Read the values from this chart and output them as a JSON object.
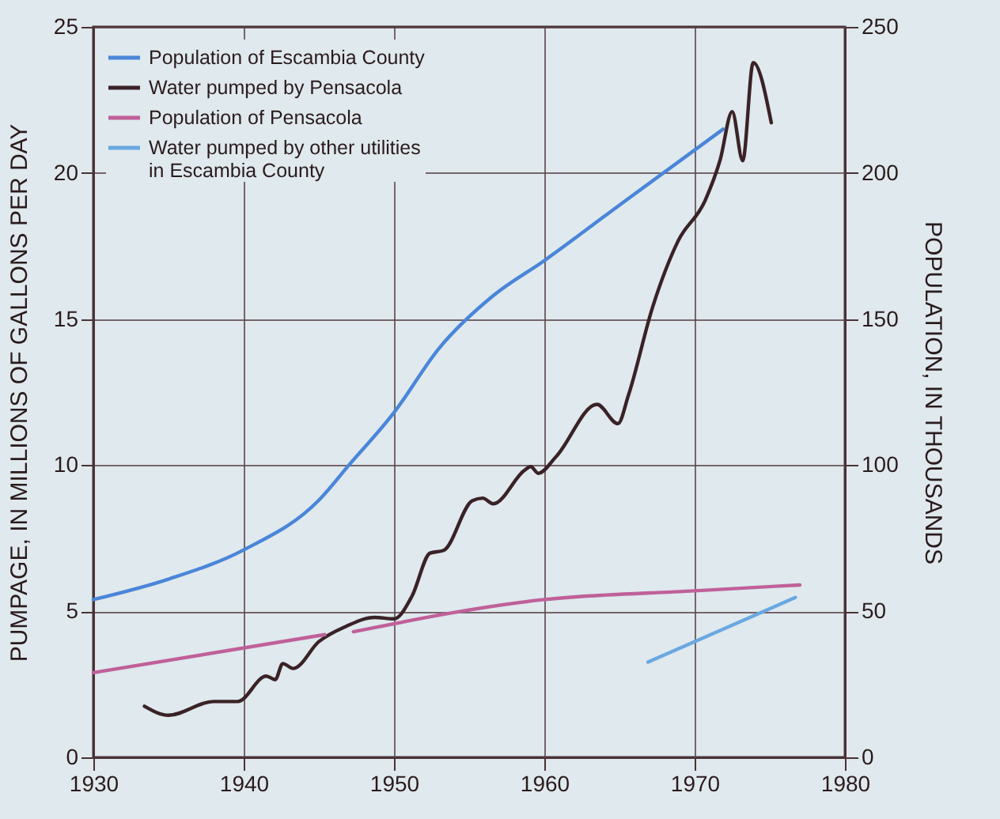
{
  "chart_data": {
    "type": "line",
    "xlabel": null,
    "ylabel": "PUMPAGE, IN MILLIONS OF GALLONS PER DAY",
    "y2label": "POPULATION, IN THOUSANDS",
    "series": [
      {
        "name": "Population of Escambia County",
        "color": "#4a86d8",
        "axis": "y2",
        "x": [
          1930,
          1935,
          1940,
          1945,
          1947,
          1950,
          1953,
          1956.6,
          1960,
          1965,
          1971.9
        ],
        "values": [
          54,
          61,
          71,
          88,
          100,
          118,
          140,
          158,
          170,
          189,
          215
        ]
      },
      {
        "name": "Water pumped by Pensacola",
        "color": "#3a2226",
        "x": [
          1933.4,
          1935,
          1938,
          1939.6,
          1941.5,
          1942.1,
          1942.6,
          1943.3,
          1945,
          1946.8,
          1948.7,
          1950,
          1951.2,
          1952.4,
          1953.3,
          1955.2,
          1955.9,
          1956.6,
          1958.7,
          1959.1,
          1959.6,
          1960.8,
          1963.5,
          1964.9,
          1965.6,
          1967.2,
          1968.9,
          1970.7,
          1971.7,
          1972.5,
          1973.2,
          1973.9,
          1975.1
        ],
        "values": [
          1.75,
          1.44,
          1.91,
          1.91,
          2.78,
          2.66,
          3.21,
          3.04,
          3.96,
          4.48,
          4.79,
          4.74,
          5.52,
          6.99,
          7.08,
          8.78,
          8.87,
          8.68,
          9.83,
          9.95,
          9.72,
          10.3,
          12.08,
          11.42,
          12.4,
          15.4,
          17.67,
          19.06,
          20.45,
          22.1,
          20.42,
          23.78,
          21.72
        ]
      },
      {
        "name": "Population of Pensacola",
        "color": "#c0609a",
        "axis": "y2",
        "x": [
          1930,
          1945.4,
          1946.4,
          1947.3,
          1960,
          1970,
          1977
        ],
        "values": [
          29,
          42,
          null,
          43,
          54,
          57,
          59
        ]
      },
      {
        "name": "Water pumped by other utilities in Escambia County",
        "color": "#6aa8e0",
        "x": [
          1966.9,
          1976.7
        ],
        "values": [
          3.26,
          5.47
        ]
      }
    ],
    "xlim": [
      1930,
      1980
    ],
    "xticks": [
      1930,
      1940,
      1950,
      1960,
      1970,
      1980
    ],
    "ylim": [
      0,
      25
    ],
    "yticks": [
      0,
      5,
      10,
      15,
      20,
      25
    ],
    "y2lim": [
      0,
      250
    ],
    "y2ticks": [
      0,
      50,
      100,
      150,
      200,
      250
    ],
    "grid": true,
    "legend": "top left"
  }
}
